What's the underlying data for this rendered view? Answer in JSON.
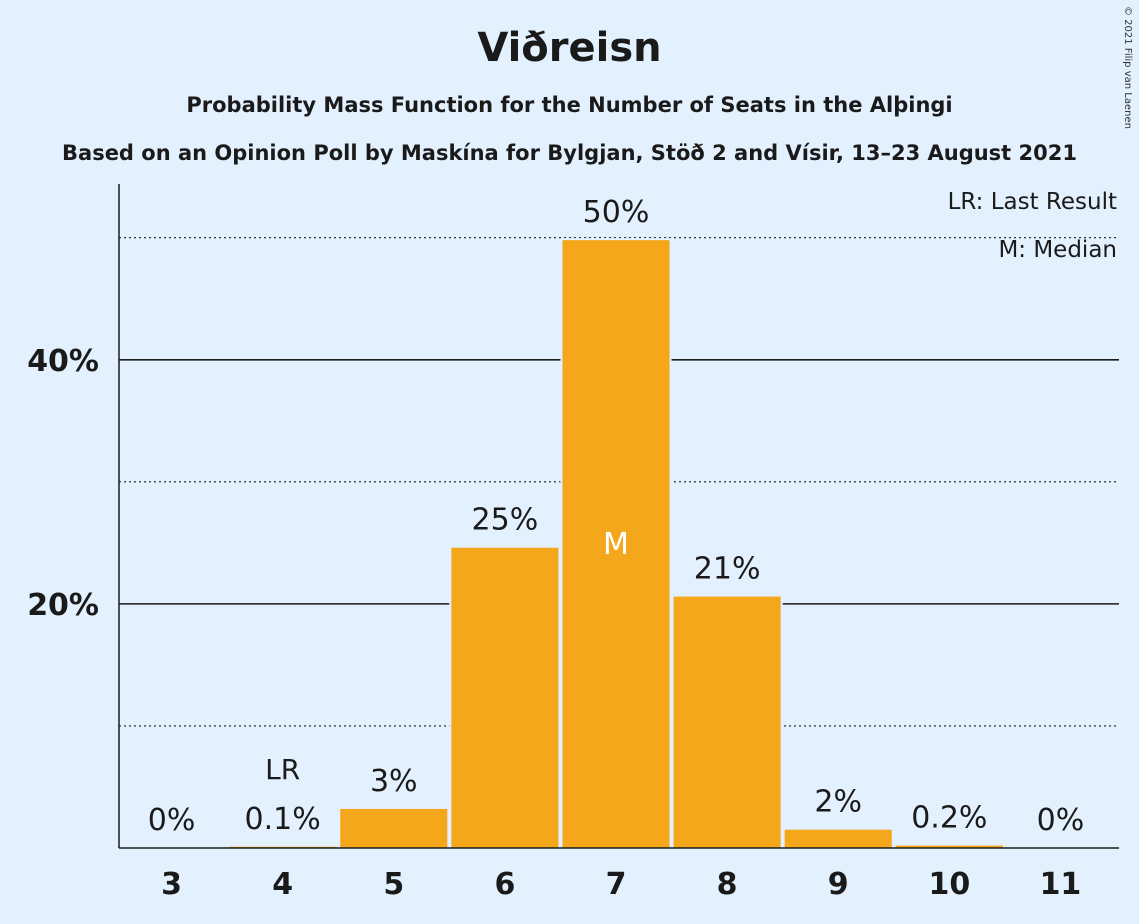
{
  "title": "Viðreisn",
  "subtitle": "Probability Mass Function for the Number of Seats in the Alþingi",
  "subtitle2": "Based on an Opinion Poll by Maskína for Bylgjan, Stöð 2 and Vísir, 13–23 August 2021",
  "copyright": "© 2021 Filip van Laenen",
  "legend": {
    "last_result": "LR: Last Result",
    "median": "M: Median"
  },
  "colors": {
    "background": "#e3f1ff",
    "bar": "#f5a71c",
    "text": "#1a1a1a"
  },
  "chart_data": {
    "type": "bar",
    "categories": [
      "3",
      "4",
      "5",
      "6",
      "7",
      "8",
      "9",
      "10",
      "11"
    ],
    "values": [
      0,
      0.1,
      3.2,
      24.6,
      49.8,
      20.6,
      1.5,
      0.2,
      0
    ],
    "data_labels": [
      "0%",
      "0.1%",
      "3%",
      "25%",
      "50%",
      "21%",
      "2%",
      "0.2%",
      "0%"
    ],
    "yticks": [
      20,
      40
    ],
    "ytick_labels": [
      "20%",
      "40%"
    ],
    "dotted_gridlines": [
      10,
      30,
      50
    ],
    "ylim": [
      0,
      54.4
    ],
    "last_result": {
      "category": "4",
      "label": "LR"
    },
    "median": {
      "category": "7",
      "label": "M"
    },
    "legend_position": "top-right"
  }
}
